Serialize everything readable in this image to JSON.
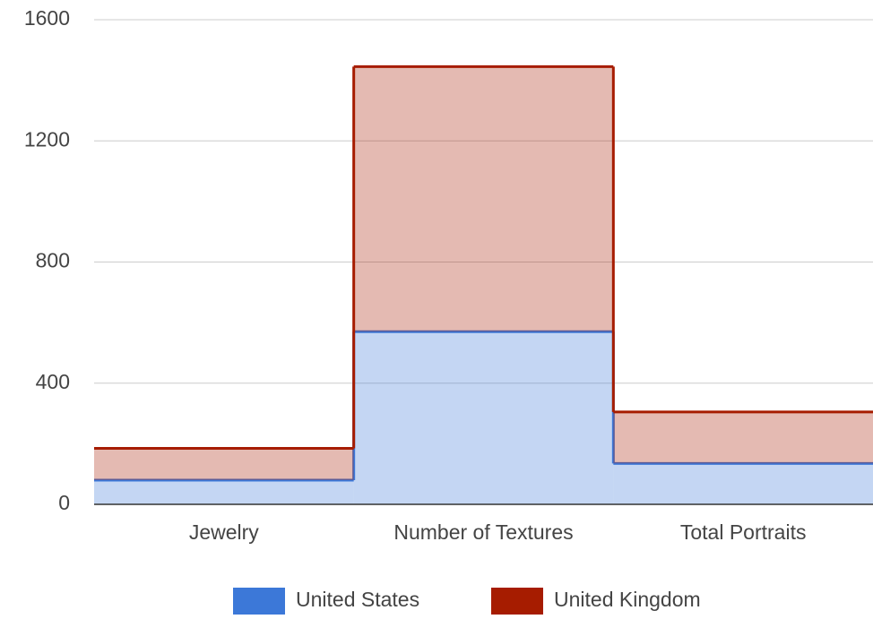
{
  "chart_data": {
    "type": "stepped-area-stacked",
    "categories": [
      "Jewelry",
      "Number of Textures",
      "Total Portraits"
    ],
    "series": [
      {
        "name": "United States",
        "color": "#3c78d8",
        "values": [
          80,
          570,
          135
        ]
      },
      {
        "name": "United Kingdom",
        "color": "#a61c00",
        "values": [
          105,
          875,
          170
        ]
      }
    ],
    "ylim": [
      0,
      1600
    ],
    "yticks": [
      0,
      400,
      800,
      1200,
      1600
    ],
    "grid": true,
    "legend": "bottom"
  }
}
